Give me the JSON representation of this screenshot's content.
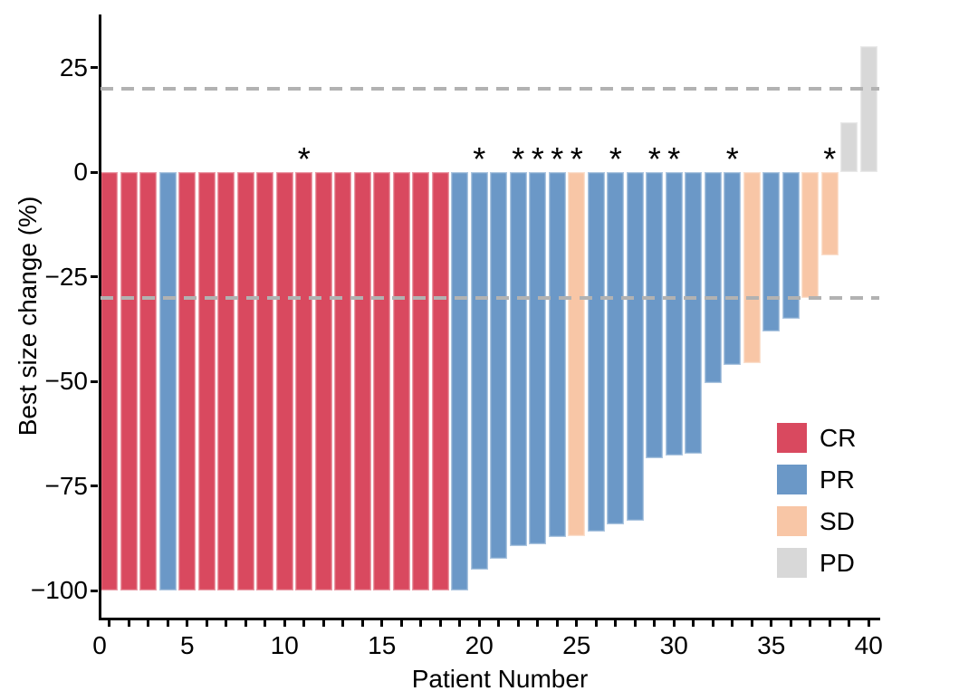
{
  "chart_data": {
    "type": "bar",
    "subtype": "waterfall",
    "title": "",
    "xlabel": "Patient Number",
    "ylabel": "Best size change (%)",
    "x_tick_labels": [
      "0",
      "5",
      "10",
      "15",
      "20",
      "25",
      "30",
      "35",
      "40"
    ],
    "x_tick_values": [
      0,
      5,
      10,
      15,
      20,
      25,
      30,
      35,
      40
    ],
    "x_minor_ticks_every_patient": true,
    "y_tick_labels": [
      "25",
      "0",
      "−25",
      "−50",
      "−75",
      "−100"
    ],
    "y_tick_values": [
      25,
      0,
      -25,
      -50,
      -75,
      -100
    ],
    "xlim": [
      0,
      42
    ],
    "ylim": [
      -107,
      38
    ],
    "grid": "off",
    "reference_lines": [
      {
        "value": 20,
        "style": "dashed",
        "color": "#b2b2b2"
      },
      {
        "value": -30,
        "style": "dashed",
        "color": "#b2b2b2"
      }
    ],
    "annotation_symbol": "*",
    "legend": {
      "position": "inside-bottom-right",
      "entries": [
        {
          "label": "CR",
          "color": "#d9495f"
        },
        {
          "label": "PR",
          "color": "#6b98c7"
        },
        {
          "label": "SD",
          "color": "#f8c6a6"
        },
        {
          "label": "PD",
          "color": "#d8d8d8"
        }
      ]
    },
    "patients": [
      {
        "patient": 1,
        "value": -100,
        "response": "CR",
        "star": false
      },
      {
        "patient": 2,
        "value": -100,
        "response": "CR",
        "star": false
      },
      {
        "patient": 3,
        "value": -100,
        "response": "CR",
        "star": false
      },
      {
        "patient": 4,
        "value": -100,
        "response": "PR",
        "star": false
      },
      {
        "patient": 5,
        "value": -100,
        "response": "CR",
        "star": false
      },
      {
        "patient": 6,
        "value": -100,
        "response": "CR",
        "star": false
      },
      {
        "patient": 7,
        "value": -100,
        "response": "CR",
        "star": false
      },
      {
        "patient": 8,
        "value": -100,
        "response": "CR",
        "star": false
      },
      {
        "patient": 9,
        "value": -100,
        "response": "CR",
        "star": false
      },
      {
        "patient": 10,
        "value": -100,
        "response": "CR",
        "star": false
      },
      {
        "patient": 11,
        "value": -100,
        "response": "CR",
        "star": true
      },
      {
        "patient": 12,
        "value": -100,
        "response": "CR",
        "star": false
      },
      {
        "patient": 13,
        "value": -100,
        "response": "CR",
        "star": false
      },
      {
        "patient": 14,
        "value": -100,
        "response": "CR",
        "star": false
      },
      {
        "patient": 15,
        "value": -100,
        "response": "CR",
        "star": false
      },
      {
        "patient": 16,
        "value": -100,
        "response": "CR",
        "star": false
      },
      {
        "patient": 17,
        "value": -100,
        "response": "CR",
        "star": false
      },
      {
        "patient": 18,
        "value": -100,
        "response": "CR",
        "star": false
      },
      {
        "patient": 19,
        "value": -100,
        "response": "PR",
        "star": false
      },
      {
        "patient": 20,
        "value": -95,
        "response": "PR",
        "star": true
      },
      {
        "patient": 21,
        "value": -92.5,
        "response": "PR",
        "star": false
      },
      {
        "patient": 22,
        "value": -89.5,
        "response": "PR",
        "star": true
      },
      {
        "patient": 23,
        "value": -89,
        "response": "PR",
        "star": true
      },
      {
        "patient": 24,
        "value": -87.3,
        "response": "PR",
        "star": true
      },
      {
        "patient": 25,
        "value": -87,
        "response": "SD",
        "star": true
      },
      {
        "patient": 26,
        "value": -86,
        "response": "PR",
        "star": false
      },
      {
        "patient": 27,
        "value": -84.3,
        "response": "PR",
        "star": true
      },
      {
        "patient": 28,
        "value": -83.3,
        "response": "PR",
        "star": false
      },
      {
        "patient": 29,
        "value": -68.5,
        "response": "PR",
        "star": true
      },
      {
        "patient": 30,
        "value": -67.8,
        "response": "PR",
        "star": true
      },
      {
        "patient": 31,
        "value": -67.3,
        "response": "PR",
        "star": false
      },
      {
        "patient": 32,
        "value": -50.5,
        "response": "PR",
        "star": false
      },
      {
        "patient": 33,
        "value": -46,
        "response": "PR",
        "star": true
      },
      {
        "patient": 34,
        "value": -45.7,
        "response": "SD",
        "star": false
      },
      {
        "patient": 35,
        "value": -38,
        "response": "PR",
        "star": false
      },
      {
        "patient": 36,
        "value": -35,
        "response": "PR",
        "star": false
      },
      {
        "patient": 37,
        "value": -30,
        "response": "SD",
        "star": false
      },
      {
        "patient": 38,
        "value": -20,
        "response": "SD",
        "star": true
      },
      {
        "patient": 39,
        "value": 12,
        "response": "PD",
        "star": false
      },
      {
        "patient": 40,
        "value": 30,
        "response": "PD",
        "star": false
      }
    ]
  }
}
